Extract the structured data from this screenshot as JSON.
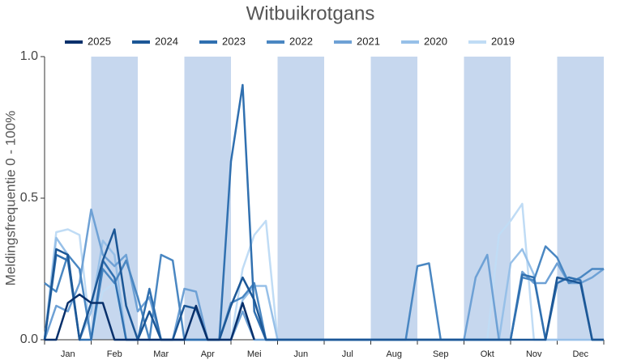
{
  "chart_data": {
    "type": "line",
    "title": "Witbuikrotgans",
    "y_label": "Meldingsfrequentie 0 - 100%",
    "x": [
      0,
      0.25,
      0.5,
      0.75,
      1,
      1.25,
      1.5,
      1.75,
      2,
      2.25,
      2.5,
      2.75,
      3,
      3.25,
      3.5,
      3.75,
      4,
      4.25,
      4.5,
      4.75,
      5,
      5.25,
      5.5,
      5.75,
      6,
      6.25,
      6.5,
      6.75,
      7,
      7.25,
      7.5,
      7.75,
      8,
      8.25,
      8.5,
      8.75,
      9,
      9.25,
      9.5,
      9.75,
      10,
      10.25,
      10.5,
      10.75,
      11,
      11.25,
      11.5,
      11.75,
      12
    ],
    "xlim": [
      0,
      12
    ],
    "xticks": [
      {
        "value": 0.5,
        "label": "Jan"
      },
      {
        "value": 1.5,
        "label": "Feb"
      },
      {
        "value": 2.5,
        "label": "Mar"
      },
      {
        "value": 3.5,
        "label": "Apr"
      },
      {
        "value": 4.5,
        "label": "Mei"
      },
      {
        "value": 5.5,
        "label": "Jun"
      },
      {
        "value": 6.5,
        "label": "Jul"
      },
      {
        "value": 7.5,
        "label": "Aug"
      },
      {
        "value": 8.5,
        "label": "Sep"
      },
      {
        "value": 9.5,
        "label": "Okt"
      },
      {
        "value": 10.5,
        "label": "Nov"
      },
      {
        "value": 11.5,
        "label": "Dec"
      }
    ],
    "ylim": [
      0,
      1
    ],
    "yticks": [
      {
        "value": 0,
        "label": "0.0"
      },
      {
        "value": 0.5,
        "label": "0.5"
      },
      {
        "value": 1,
        "label": "1.0"
      }
    ],
    "band_color": "#c6d7ee",
    "legend": "top",
    "series": [
      {
        "name": "2025",
        "color": "#08306b",
        "values": [
          0,
          0,
          0.13,
          0.16,
          0.13,
          0.13,
          0,
          0,
          0,
          0,
          0,
          0,
          0,
          0.12,
          0,
          0,
          0,
          0.13,
          0,
          null,
          null,
          null,
          null,
          null,
          null,
          null,
          null,
          null,
          null,
          null,
          null,
          null,
          null,
          null,
          null,
          null,
          null,
          null,
          null,
          null,
          null,
          null,
          null,
          null,
          null,
          null,
          null,
          null,
          null
        ]
      },
      {
        "name": "2024",
        "color": "#1c5796",
        "values": [
          0,
          0.32,
          0.3,
          0,
          0.13,
          0.28,
          0.39,
          0.12,
          0,
          0.1,
          0,
          0,
          0.12,
          0.11,
          0,
          0,
          0.12,
          0.22,
          0.14,
          0,
          0,
          0,
          0,
          0,
          0,
          0,
          0,
          0,
          0,
          0,
          0,
          0,
          0,
          0,
          0,
          0,
          0,
          0,
          0,
          0,
          0,
          0,
          0,
          0,
          0.22,
          0.21,
          0.2,
          0,
          0
        ]
      },
      {
        "name": "2023",
        "color": "#3070b0",
        "values": [
          0,
          0.3,
          0.28,
          0,
          0,
          0.28,
          0.22,
          0,
          0,
          0.18,
          0,
          0,
          0,
          0,
          0,
          0,
          0.63,
          0.9,
          0.1,
          0,
          0,
          0,
          0,
          0,
          0,
          0,
          0,
          0,
          0,
          0,
          0,
          0,
          0,
          0,
          0,
          0,
          0,
          0,
          0,
          0,
          0,
          0.23,
          0.22,
          0,
          0.2,
          0.22,
          0.21,
          0,
          0
        ]
      },
      {
        "name": "2022",
        "color": "#4a87c2",
        "values": [
          0.2,
          0.17,
          0.3,
          0.25,
          0,
          0.25,
          0.2,
          0.28,
          0.15,
          0,
          0.3,
          0.28,
          0,
          0,
          0,
          0,
          0.13,
          0.15,
          0.2,
          0,
          0,
          0,
          0,
          0,
          0,
          0,
          0,
          0,
          0,
          0,
          0,
          0,
          0.26,
          0.27,
          0,
          0,
          0,
          0,
          0,
          0,
          0,
          0.22,
          0.21,
          0.33,
          0.29,
          0.2,
          0.22,
          0.25,
          0.25
        ]
      },
      {
        "name": "2021",
        "color": "#6ea1d5",
        "values": [
          0,
          0.12,
          0.1,
          0.2,
          0.46,
          0.3,
          0.26,
          0.3,
          0.1,
          0.15,
          0,
          0,
          0.18,
          0.17,
          0,
          0,
          0,
          0.1,
          0,
          0,
          0,
          0,
          0,
          0,
          0,
          0,
          0,
          0,
          0,
          0,
          0,
          0,
          0,
          0,
          0,
          0,
          0,
          0.22,
          0.3,
          0,
          0,
          0.24,
          0.2,
          0.2,
          0.27,
          0.2,
          0.2,
          0.22,
          0.25
        ]
      },
      {
        "name": "2020",
        "color": "#97c0e8",
        "values": [
          0,
          0.36,
          0.3,
          0,
          0.1,
          0.35,
          0.3,
          0,
          0,
          0,
          0,
          0,
          0,
          0,
          0,
          0,
          0,
          0.14,
          0.19,
          0.19,
          0,
          0,
          0,
          0,
          0,
          0,
          0,
          0,
          0,
          0,
          0,
          0,
          0,
          0,
          0,
          0,
          0,
          0,
          0,
          0,
          0.27,
          0.32,
          0.23,
          0,
          0,
          0,
          0,
          0,
          0
        ]
      },
      {
        "name": "2019",
        "color": "#c0dcf5",
        "values": [
          0,
          0.38,
          0.39,
          0.37,
          0,
          0.17,
          0.2,
          0,
          0,
          0,
          0,
          0,
          0,
          0,
          0,
          0,
          0,
          0.25,
          0.37,
          0.42,
          0,
          0,
          0,
          0,
          0,
          0,
          0,
          0,
          0,
          0,
          0,
          0,
          0,
          0,
          0,
          0,
          0,
          0,
          0,
          0.37,
          0.42,
          0.48,
          0,
          0,
          0,
          0,
          0,
          0,
          0
        ]
      }
    ]
  }
}
